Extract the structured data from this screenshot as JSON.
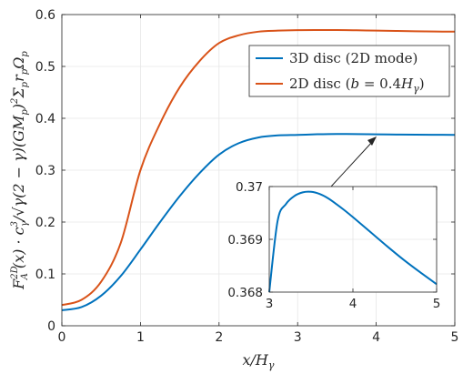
{
  "chart_data": {
    "type": "line",
    "title": "",
    "xlabel": "x/H_γ",
    "ylabel": "F_A^{2D}(x) · c_γ^3 / √(γ(2 − γ)) (GM_p)^2 Σ_p r_p Ω_p",
    "xlim": [
      0,
      5
    ],
    "ylim": [
      0,
      0.6
    ],
    "xticks": [
      "0",
      "1",
      "2",
      "3",
      "4",
      "5"
    ],
    "yticks": [
      "0",
      "0.1",
      "0.2",
      "0.3",
      "0.4",
      "0.5",
      "0.6"
    ],
    "grid": true,
    "legend_position": "top-right",
    "series": [
      {
        "name": "3D disc (2D mode)",
        "color": "#0072BD",
        "x": [
          0,
          0.25,
          0.5,
          0.75,
          1.0,
          1.25,
          1.5,
          1.75,
          2.0,
          2.25,
          2.5,
          2.75,
          3.0,
          3.25,
          3.5,
          3.75,
          4.0,
          4.25,
          4.5,
          4.75,
          5.0
        ],
        "y": [
          0.03,
          0.036,
          0.058,
          0.096,
          0.147,
          0.2,
          0.25,
          0.294,
          0.33,
          0.352,
          0.363,
          0.367,
          0.368,
          0.3692,
          0.3698,
          0.3696,
          0.369,
          0.3687,
          0.3684,
          0.3682,
          0.368
        ]
      },
      {
        "name": "2D disc (b = 0.4H_γ)",
        "color": "#D95319",
        "x": [
          0,
          0.25,
          0.5,
          0.75,
          1.0,
          1.25,
          1.5,
          1.75,
          2.0,
          2.25,
          2.5,
          2.75,
          3.0,
          3.25,
          3.5,
          3.75,
          4.0,
          4.25,
          4.5,
          4.75,
          5.0
        ],
        "y": [
          0.04,
          0.05,
          0.085,
          0.16,
          0.3,
          0.39,
          0.46,
          0.51,
          0.545,
          0.56,
          0.567,
          0.569,
          0.57,
          0.5702,
          0.5702,
          0.5697,
          0.569,
          0.5684,
          0.5678,
          0.5673,
          0.567
        ]
      }
    ],
    "inset": {
      "xlim": [
        3,
        5
      ],
      "ylim": [
        0.368,
        0.37
      ],
      "xticks": [
        "3",
        "4",
        "5"
      ],
      "yticks": [
        "0.368",
        "0.369",
        "0.37"
      ],
      "series": [
        {
          "name": "3D disc (2D mode)",
          "color": "#0072BD",
          "x": [
            3.0,
            3.1,
            3.2,
            3.3,
            3.4,
            3.5,
            3.6,
            3.7,
            3.8,
            3.9,
            4.0,
            4.2,
            4.4,
            4.6,
            4.8,
            5.0
          ],
          "y": [
            0.368,
            0.36935,
            0.36967,
            0.36982,
            0.36989,
            0.3699,
            0.36986,
            0.36978,
            0.36967,
            0.36955,
            0.36942,
            0.36915,
            0.36888,
            0.36862,
            0.36838,
            0.36815
          ]
        }
      ]
    }
  }
}
